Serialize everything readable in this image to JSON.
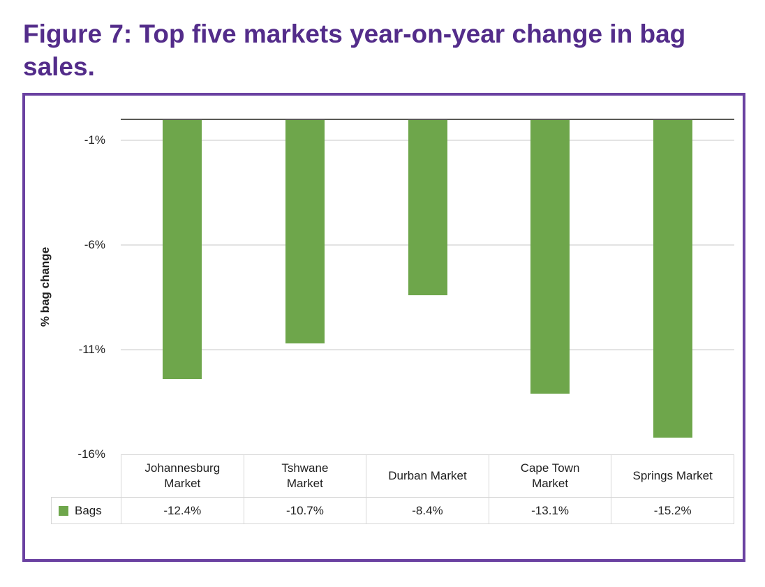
{
  "figure": {
    "title": "Figure 7: Top five markets year-on-year change in bag\nsales.",
    "title_color": "#532c8a",
    "border_color": "#6a41a1"
  },
  "chart_data": {
    "type": "bar",
    "title": "Figure 7: Top five markets year-on-year change in bag sales.",
    "xlabel": "",
    "ylabel": "% bag change",
    "categories": [
      "Johannesburg Market",
      "Tshwane Market",
      "Durban Market",
      "Cape Town Market",
      "Springs Market"
    ],
    "category_labels": [
      "Johannesburg\nMarket",
      "Tshwane\nMarket",
      "Durban Market",
      "Cape Town\nMarket",
      "Springs Market"
    ],
    "series": [
      {
        "name": "Bags",
        "values": [
          -12.4,
          -10.7,
          -8.4,
          -13.1,
          -15.2
        ]
      }
    ],
    "table_values": [
      "-12.4%",
      "-10.7%",
      "-8.4%",
      "-13.1%",
      "-15.2%"
    ],
    "y_ticks": [
      "-1%",
      "-6%",
      "-11%",
      "-16%"
    ],
    "ylim": [
      -16,
      0
    ],
    "grid": true,
    "legend_position": "table-left",
    "bar_color": "#6ea64b",
    "axis_line_color": "#595955",
    "gridline_color": "#e3e3e3",
    "table_border_color": "#d6d6d6",
    "text_color": "#1f1f1f"
  }
}
